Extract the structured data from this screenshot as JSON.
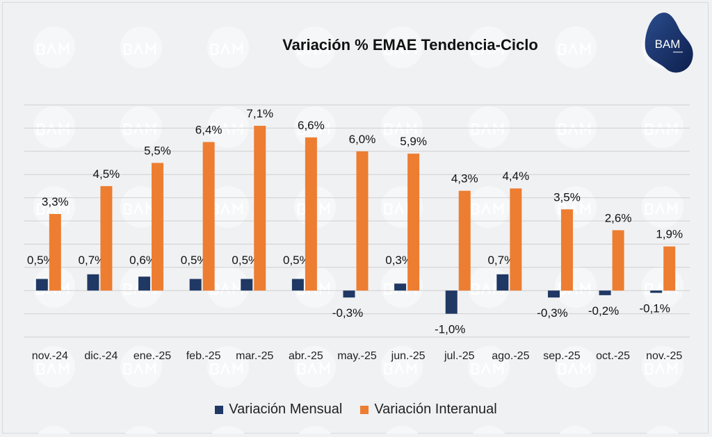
{
  "chart_data": {
    "type": "bar",
    "title": "Variación % EMAE Tendencia-Ciclo",
    "categories": [
      "nov.-24",
      "dic.-24",
      "ene.-25",
      "feb.-25",
      "mar.-25",
      "abr.-25",
      "may.-25",
      "jun.-25",
      "jul.-25",
      "ago.-25",
      "sep.-25",
      "oct.-25",
      "nov.-25"
    ],
    "series": [
      {
        "name": "Variación Mensual",
        "color": "#1f3864",
        "values": [
          0.5,
          0.7,
          0.6,
          0.5,
          0.5,
          0.5,
          -0.3,
          0.3,
          -1.0,
          0.7,
          -0.3,
          -0.2,
          -0.1
        ],
        "labels": [
          "0,5%",
          "0,7%",
          "0,6%",
          "0,5%",
          "0,5%",
          "0,5%",
          "-0,3%",
          "0,3%",
          "-1,0%",
          "0,7%",
          "-0,3%",
          "-0,2%",
          "-0,1%"
        ]
      },
      {
        "name": "Variación Interanual",
        "color": "#ed7d31",
        "values": [
          3.3,
          4.5,
          5.5,
          6.4,
          7.1,
          6.6,
          6.0,
          5.9,
          4.3,
          4.4,
          3.5,
          2.6,
          1.9
        ],
        "labels": [
          "3,3%",
          "4,5%",
          "5,5%",
          "6,4%",
          "7,1%",
          "6,6%",
          "6,0%",
          "5,9%",
          "4,3%",
          "4,4%",
          "3,5%",
          "2,6%",
          "1,9%"
        ]
      }
    ],
    "ylim": [
      -2,
      8
    ],
    "grid": true,
    "legend": "bottom",
    "xlabel": "",
    "ylabel": ""
  },
  "logo": {
    "text": "BAM"
  },
  "watermark": "BAM"
}
